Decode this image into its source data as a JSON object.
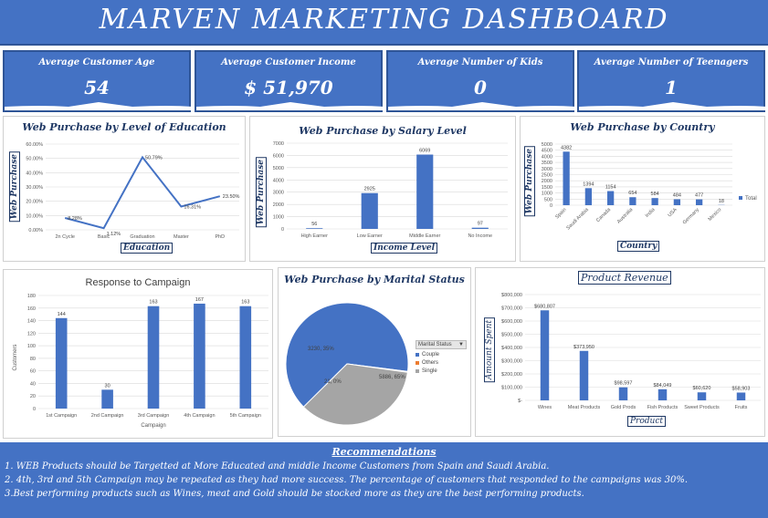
{
  "header": {
    "title": "MARVEN MARKETING DASHBOARD"
  },
  "kpis": [
    {
      "label": "Average  Customer Age",
      "value": "54"
    },
    {
      "label": "Average  Customer Income",
      "value": "$ 51,970"
    },
    {
      "label": "Average  Number of Kids",
      "value": "0"
    },
    {
      "label": "Average  Number of Teenagers",
      "value": "1"
    }
  ],
  "colors": {
    "accent": "#4472c4",
    "dark": "#2f5597",
    "gray": "#a5a5a5",
    "orange": "#ed7d31"
  },
  "chart_data": [
    {
      "id": "education",
      "type": "line",
      "title": "Web Purchase by Level of Education",
      "xlabel": "Education",
      "ylabel": "Web Purchase",
      "categories": [
        "2n Cycle",
        "Basic",
        "Graduation",
        "Master",
        "PhD"
      ],
      "values": [
        8.28,
        1.12,
        50.79,
        16.31,
        23.5
      ],
      "data_labels": [
        "8.28%",
        "1.12%",
        "50.79%",
        "16.31%",
        "23.50%"
      ],
      "ylim": [
        0,
        60
      ],
      "ticks": [
        "0.00%",
        "10.00%",
        "20.00%",
        "30.00%",
        "40.00%",
        "50.00%",
        "60.00%"
      ],
      "grid": true
    },
    {
      "id": "salary",
      "type": "bar",
      "title": "Web Purchase by Salary Level",
      "xlabel": "Income Level",
      "ylabel": "Web Purchase",
      "categories": [
        "High Earner",
        "Low Earner",
        "Middle Earner",
        "No Income"
      ],
      "values": [
        56,
        2925,
        6069,
        97
      ],
      "data_labels": [
        "56",
        "2925",
        "6069",
        "97"
      ],
      "ylim": [
        0,
        7000
      ],
      "ticks": [
        "0",
        "1000",
        "2000",
        "3000",
        "4000",
        "5000",
        "6000",
        "7000"
      ],
      "grid": true
    },
    {
      "id": "country",
      "type": "bar",
      "title": "Web Purchase by Country",
      "xlabel": "Country",
      "ylabel": "Web Purchase",
      "categories": [
        "Spain",
        "Saudi Arabia",
        "Canada",
        "Australia",
        "India",
        "USA",
        "Germany",
        "Mexico"
      ],
      "values": [
        4382,
        1394,
        1154,
        654,
        584,
        484,
        477,
        18
      ],
      "data_labels": [
        "4382",
        "1394",
        "1154",
        "654",
        "584",
        "484",
        "477",
        "18"
      ],
      "ylim": [
        0,
        5000
      ],
      "ticks": [
        "0",
        "500",
        "1000",
        "1500",
        "2000",
        "2500",
        "3000",
        "3500",
        "4000",
        "4500",
        "5000"
      ],
      "legend": "Total",
      "grid": true
    },
    {
      "id": "campaign",
      "type": "bar",
      "title": "Response to Campaign",
      "xlabel": "Campaign",
      "ylabel": "Customers",
      "categories": [
        "1st Campaign",
        "2nd Campaign",
        "3rd Campaign",
        "4th Campaign",
        "5th Campaign"
      ],
      "values": [
        144,
        30,
        163,
        167,
        163
      ],
      "data_labels": [
        "144",
        "30",
        "163",
        "167",
        "163"
      ],
      "ylim": [
        0,
        180
      ],
      "ticks": [
        "0",
        "20",
        "40",
        "60",
        "80",
        "100",
        "120",
        "140",
        "160",
        "180"
      ],
      "grid": true
    },
    {
      "id": "marital",
      "type": "pie",
      "title": "Web Purchase by Marital Status",
      "legend_title": "Marital Status",
      "categories": [
        "Couple",
        "Others",
        "Single"
      ],
      "values": [
        5886,
        21,
        3230
      ],
      "data_labels": [
        "5886, 65%",
        "21, 0%",
        "3230, 35%"
      ]
    },
    {
      "id": "revenue",
      "type": "bar",
      "title": "Product Revenue",
      "xlabel": "Product",
      "ylabel": "Amount Spent",
      "categories": [
        "Wines",
        "Meat Products",
        "Gold Prods",
        "Fish Products",
        "Sweet Products",
        "Fruits"
      ],
      "values": [
        680807,
        373950,
        98597,
        84049,
        60620,
        58903
      ],
      "data_labels": [
        "$680,807",
        "$373,950",
        "$98,597",
        "$84,049",
        "$60,620",
        "$58,903"
      ],
      "ylim": [
        0,
        800000
      ],
      "ticks": [
        "$-",
        "$100,000",
        "$200,000",
        "$300,000",
        "$400,000",
        "$500,000",
        "$600,000",
        "$700,000",
        "$800,000"
      ],
      "grid": true
    }
  ],
  "recommendations": {
    "title": "Recommendations",
    "lines": [
      "1. WEB Products should be Targetted at More Educated and middle Income Customers from Spain and Saudi  Arabia.",
      "2. 4th, 3rd and 5th Campaign may be repeated as they had more success. The percentage of customers that responded to the campaigns was 30%.",
      "3.Best performing products such as Wines, meat and Gold should be stocked more as they are the best performing products."
    ]
  }
}
